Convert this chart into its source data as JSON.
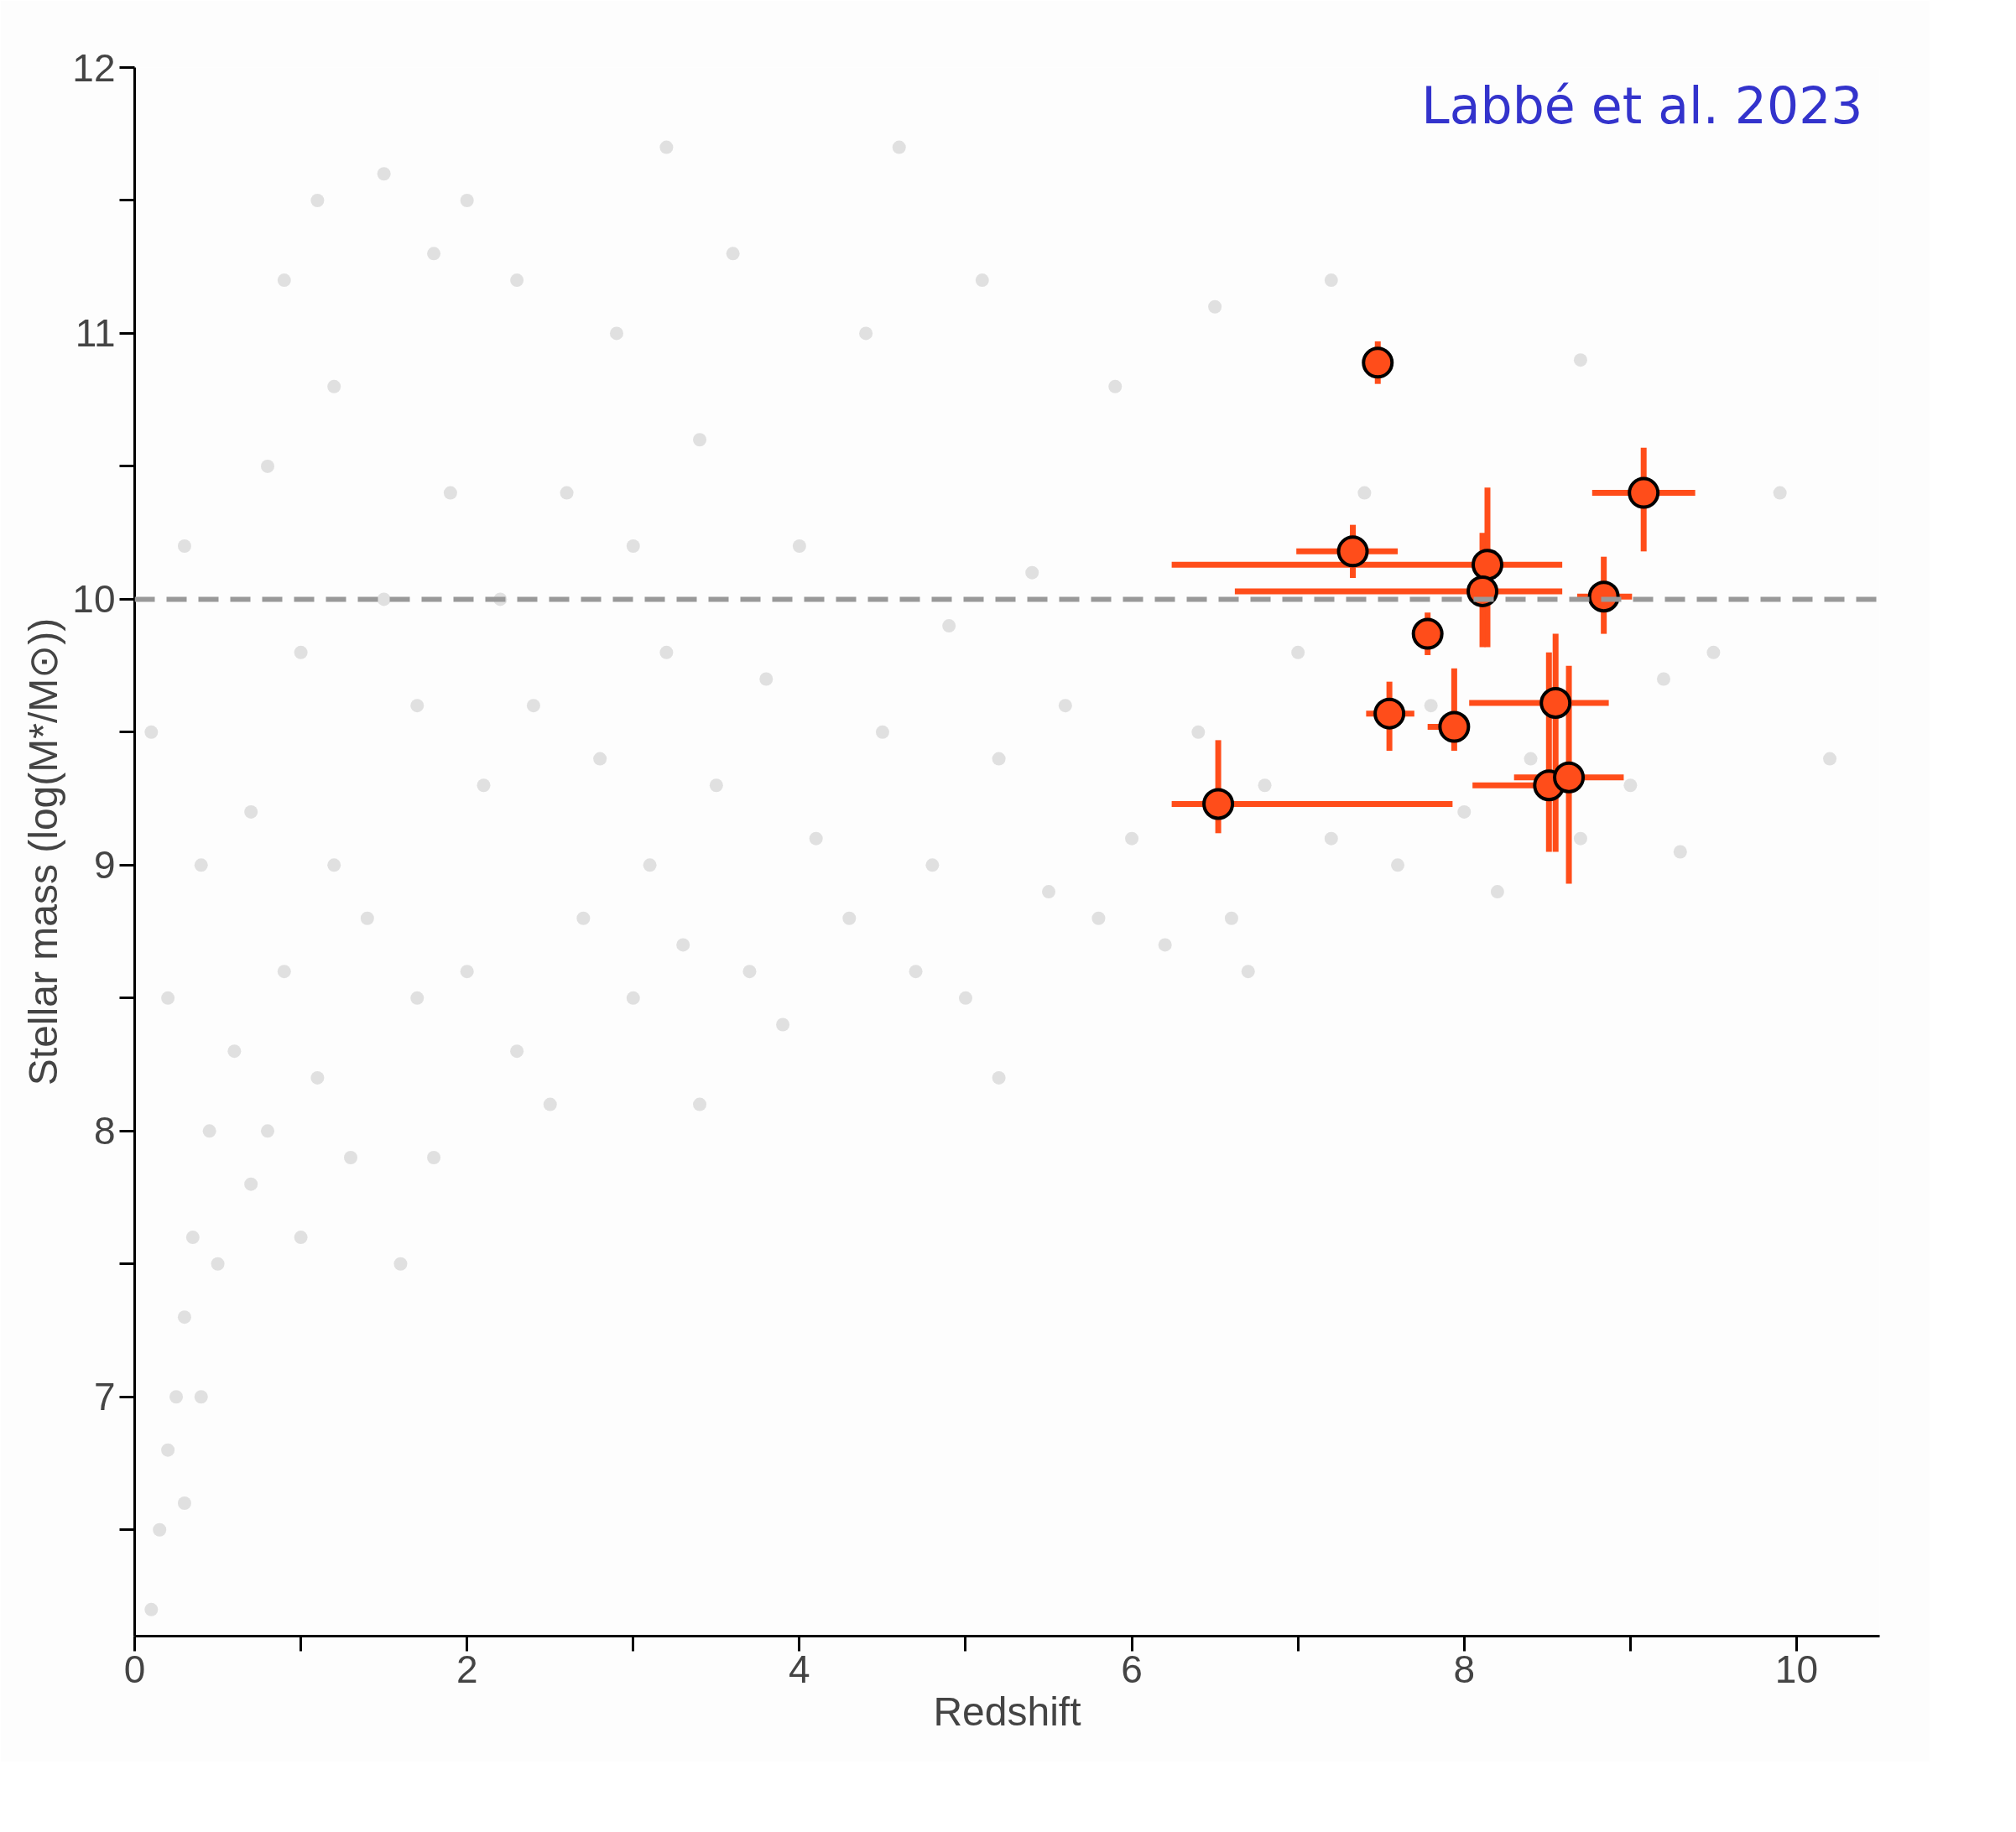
{
  "chart_data": {
    "type": "scatter",
    "xlabel": "Redshift",
    "ylabel": "Stellar mass (log(M*/M⊙))",
    "annotations": [
      "Labbé et al. 2023"
    ],
    "marker": "circle",
    "grid": false,
    "xlim": [
      0,
      10.5
    ],
    "ylim": [
      6.1,
      12
    ],
    "xticks": [
      0,
      2,
      4,
      6,
      8,
      10
    ],
    "yticks": [
      7,
      8,
      9,
      10,
      11,
      12
    ],
    "ref_lines": [
      {
        "axis": "y",
        "value": 10,
        "label": null,
        "color": "#999999",
        "line_style": "dashed"
      }
    ],
    "series": [
      {
        "color": "#c8c8c8",
        "x": [
          0.1,
          0.15,
          0.2,
          0.25,
          0.3,
          0.3,
          0.35,
          0.4,
          0.45,
          0.5,
          0.2,
          0.1,
          0.3,
          0.4,
          0.6,
          0.7,
          0.7,
          0.8,
          0.8,
          0.9,
          0.9,
          1.0,
          1.0,
          1.1,
          1.1,
          1.2,
          1.2,
          1.3,
          1.4,
          1.5,
          1.5,
          1.6,
          1.7,
          1.7,
          1.8,
          1.8,
          1.9,
          2.0,
          2.0,
          2.1,
          2.2,
          2.3,
          2.3,
          2.4,
          2.5,
          2.6,
          2.7,
          2.8,
          2.9,
          3.0,
          3.0,
          3.1,
          3.2,
          3.3,
          3.4,
          3.4,
          3.5,
          3.6,
          3.7,
          3.8,
          3.9,
          4.0,
          4.1,
          4.3,
          4.4,
          4.5,
          4.7,
          4.8,
          4.9,
          5.0,
          5.1,
          5.2,
          5.2,
          5.4,
          5.5,
          5.6,
          5.8,
          5.9,
          6.0,
          6.2,
          6.4,
          6.5,
          6.6,
          6.7,
          6.8,
          7.0,
          7.2,
          7.4,
          7.6,
          7.8,
          8.0,
          8.2,
          8.4,
          8.7,
          9.0,
          9.2,
          9.3,
          9.5,
          9.9,
          10.2,
          7.2,
          4.6,
          3.2,
          8.7
        ],
        "values": [
          6.2,
          6.5,
          6.8,
          7.0,
          7.3,
          6.6,
          7.6,
          7.0,
          8.0,
          7.5,
          8.5,
          9.5,
          10.2,
          9.0,
          8.3,
          7.8,
          9.2,
          8.0,
          10.5,
          11.2,
          8.6,
          7.6,
          9.8,
          8.2,
          11.5,
          9.0,
          10.8,
          7.9,
          8.8,
          10.0,
          11.6,
          7.5,
          8.5,
          9.6,
          11.3,
          7.9,
          10.4,
          8.6,
          11.5,
          9.3,
          10.0,
          8.3,
          11.2,
          9.6,
          8.1,
          10.4,
          8.8,
          9.4,
          11.0,
          8.5,
          10.2,
          9.0,
          9.8,
          8.7,
          8.1,
          10.6,
          9.3,
          11.3,
          8.6,
          9.7,
          8.4,
          10.2,
          9.1,
          8.8,
          11.0,
          9.5,
          8.6,
          9.0,
          9.9,
          8.5,
          11.2,
          8.2,
          9.4,
          10.1,
          8.9,
          9.6,
          8.8,
          10.8,
          9.1,
          8.7,
          9.5,
          11.1,
          8.8,
          8.6,
          9.3,
          9.8,
          9.1,
          10.4,
          9.0,
          9.6,
          9.2,
          8.9,
          9.4,
          9.1,
          9.3,
          9.7,
          9.05,
          9.8,
          10.4,
          9.4,
          11.2,
          11.7,
          11.7,
          10.9
        ]
      },
      {
        "color": "#ff4d1a",
        "x": [
          7.48,
          7.33,
          8.14,
          8.11,
          9.08,
          8.84,
          7.78,
          7.55,
          7.94,
          8.55,
          8.51,
          8.63,
          6.52
        ],
        "values": [
          10.89,
          10.18,
          10.13,
          10.03,
          10.4,
          10.01,
          9.87,
          9.57,
          9.52,
          9.61,
          9.3,
          9.33,
          9.23
        ],
        "errors": [
          [
            10.81,
            10.97
          ],
          [
            10.08,
            10.28
          ],
          [
            9.82,
            10.42
          ],
          [
            9.82,
            10.25
          ],
          [
            10.18,
            10.57
          ],
          [
            9.87,
            10.16
          ],
          [
            9.79,
            9.95
          ],
          [
            9.43,
            9.69
          ],
          [
            9.43,
            9.74
          ],
          [
            9.05,
            9.87
          ],
          [
            9.05,
            9.8
          ],
          [
            8.93,
            9.75
          ],
          [
            9.12,
            9.47
          ]
        ],
        "xerrors": [
          null,
          [
            6.99,
            7.6
          ],
          [
            6.24,
            8.59
          ],
          [
            6.62,
            8.59
          ],
          [
            8.77,
            9.39
          ],
          [
            8.68,
            9.01
          ],
          null,
          [
            7.41,
            7.7
          ],
          [
            7.78,
            8.03
          ],
          [
            8.03,
            8.87
          ],
          [
            8.05,
            8.49
          ],
          [
            8.3,
            8.96
          ],
          [
            6.24,
            7.93
          ]
        ]
      }
    ]
  }
}
